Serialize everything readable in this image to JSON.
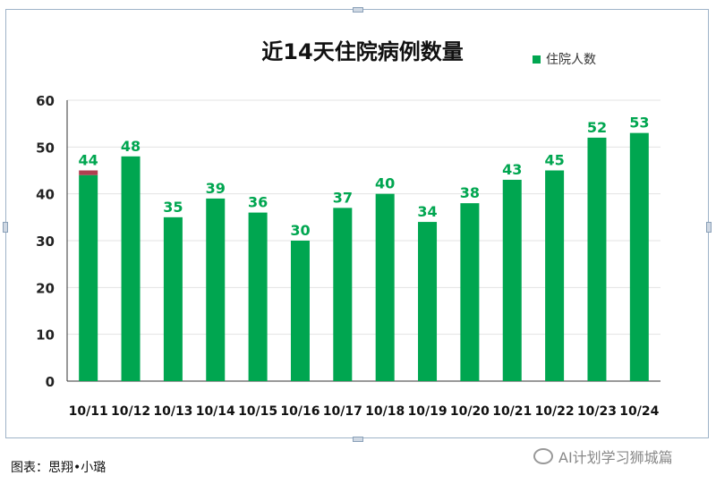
{
  "chart_data": {
    "type": "bar",
    "title": "近14天住院病例数量",
    "legend": [
      {
        "name": "住院人数",
        "color": "#00a650"
      }
    ],
    "legend_position": "top-right",
    "categories": [
      "10/11",
      "10/12",
      "10/13",
      "10/14",
      "10/15",
      "10/16",
      "10/17",
      "10/18",
      "10/19",
      "10/20",
      "10/21",
      "10/22",
      "10/23",
      "10/24"
    ],
    "series": [
      {
        "name": "住院人数",
        "values": [
          44,
          48,
          35,
          39,
          36,
          30,
          37,
          40,
          34,
          38,
          43,
          45,
          52,
          53
        ],
        "color": "#00a650"
      }
    ],
    "highlight": {
      "category": "10/11",
      "segment_range": [
        44,
        45
      ],
      "color": "#b04050"
    },
    "ylim": [
      0,
      60
    ],
    "yticks": [
      0,
      10,
      20,
      30,
      40,
      50,
      60
    ],
    "grid": true,
    "label_color": "#00a650"
  },
  "caption": "图表：思翔•小璐",
  "watermark": "AI计划学习狮城篇"
}
